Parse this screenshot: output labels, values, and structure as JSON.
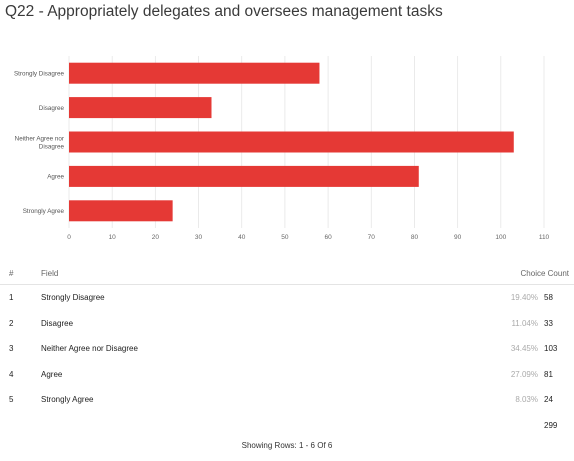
{
  "title": "Q22 - Appropriately delegates and oversees management tasks",
  "chart_data": {
    "type": "bar",
    "orientation": "horizontal",
    "categories": [
      "Strongly Disagree",
      "Disagree",
      "Neither Agree nor Disagree",
      "Agree",
      "Strongly Agree"
    ],
    "values": [
      58,
      33,
      103,
      81,
      24
    ],
    "xlim": [
      0,
      110
    ],
    "xticks": [
      0,
      10,
      20,
      30,
      40,
      50,
      60,
      70,
      80,
      90,
      100,
      110
    ],
    "grid": true,
    "bar_color": "#e53935",
    "title": "Q22 - Appropriately delegates and oversees management tasks",
    "xlabel": "",
    "ylabel": ""
  },
  "table": {
    "headers": {
      "index": "#",
      "field": "Field",
      "choice_count": "Choice Count"
    },
    "rows": [
      {
        "index": "1",
        "field": "Strongly Disagree",
        "percent": "19.40%",
        "count": "58"
      },
      {
        "index": "2",
        "field": "Disagree",
        "percent": "11.04%",
        "count": "33"
      },
      {
        "index": "3",
        "field": "Neither Agree nor Disagree",
        "percent": "34.45%",
        "count": "103"
      },
      {
        "index": "4",
        "field": "Agree",
        "percent": "27.09%",
        "count": "81"
      },
      {
        "index": "5",
        "field": "Strongly Agree",
        "percent": "8.03%",
        "count": "24"
      }
    ],
    "total": "299"
  },
  "footer": "Showing Rows: 1 - 6 Of 6"
}
